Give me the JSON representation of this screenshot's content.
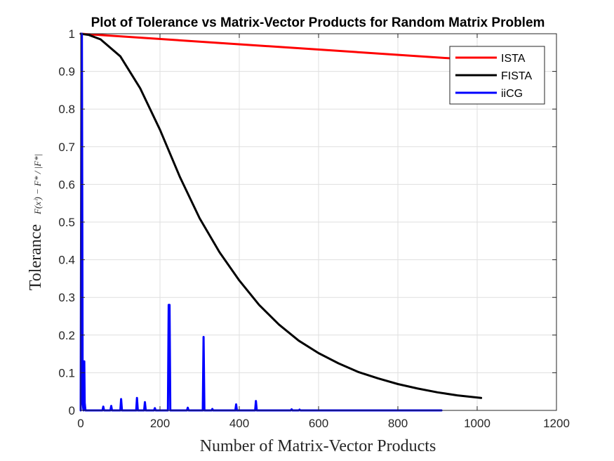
{
  "chart_data": {
    "type": "line",
    "title": "Plot of Tolerance vs Matrix-Vector Products for Random Matrix Problem",
    "xlabel": "Number of Matrix-Vector Products",
    "ylabel_text": "Tolerance",
    "ylabel_math": "F(xⁱ) − F* / |F*|",
    "xlim": [
      0,
      1200
    ],
    "ylim": [
      0,
      1
    ],
    "xticks": [
      0,
      200,
      400,
      600,
      800,
      1000,
      1200
    ],
    "yticks": [
      0,
      0.1,
      0.2,
      0.3,
      0.4,
      0.5,
      0.6,
      0.7,
      0.8,
      0.9,
      1
    ],
    "xtick_labels": [
      "0",
      "200",
      "400",
      "600",
      "800",
      "1000",
      "1200"
    ],
    "ytick_labels": [
      "0",
      "0.1",
      "0.2",
      "0.3",
      "0.4",
      "0.5",
      "0.6",
      "0.7",
      "0.8",
      "0.9",
      "1"
    ],
    "grid": true,
    "legend_position": "top-right",
    "series": [
      {
        "name": "ISTA",
        "color": "#ff0000",
        "x": [
          0,
          1000
        ],
        "y": [
          1.0,
          0.93
        ]
      },
      {
        "name": "FISTA",
        "color": "#000000",
        "x": [
          0,
          20,
          50,
          100,
          150,
          200,
          250,
          300,
          350,
          400,
          450,
          500,
          550,
          600,
          650,
          700,
          750,
          800,
          850,
          900,
          950,
          1010
        ],
        "y": [
          1.0,
          0.997,
          0.985,
          0.94,
          0.855,
          0.745,
          0.62,
          0.51,
          0.42,
          0.345,
          0.28,
          0.228,
          0.185,
          0.152,
          0.125,
          0.102,
          0.085,
          0.07,
          0.058,
          0.048,
          0.04,
          0.033
        ]
      },
      {
        "name": "iiCG",
        "color": "#0000ff",
        "x": [
          0,
          2,
          3,
          4,
          5,
          7,
          8,
          9,
          10,
          12,
          15,
          55,
          57,
          59,
          75,
          77,
          79,
          100,
          102,
          104,
          140,
          142,
          144,
          160,
          162,
          164,
          185,
          187,
          189,
          220,
          222,
          224,
          226,
          268,
          270,
          272,
          308,
          310,
          312,
          330,
          332,
          334,
          390,
          392,
          394,
          440,
          442,
          444,
          530,
          532,
          534,
          550,
          552,
          554,
          910
        ],
        "y": [
          0,
          1.0,
          1.0,
          0.5,
          0.02,
          0,
          0.13,
          0.13,
          0.02,
          0,
          0,
          0,
          0.01,
          0,
          0,
          0.012,
          0,
          0,
          0.03,
          0,
          0,
          0.033,
          0,
          0,
          0.022,
          0,
          0,
          0.006,
          0,
          0,
          0.28,
          0.28,
          0,
          0,
          0.007,
          0,
          0,
          0.195,
          0,
          0,
          0.004,
          0,
          0,
          0.016,
          0,
          0,
          0.025,
          0,
          0,
          0.003,
          0,
          0,
          0.002,
          0,
          0
        ]
      }
    ]
  }
}
